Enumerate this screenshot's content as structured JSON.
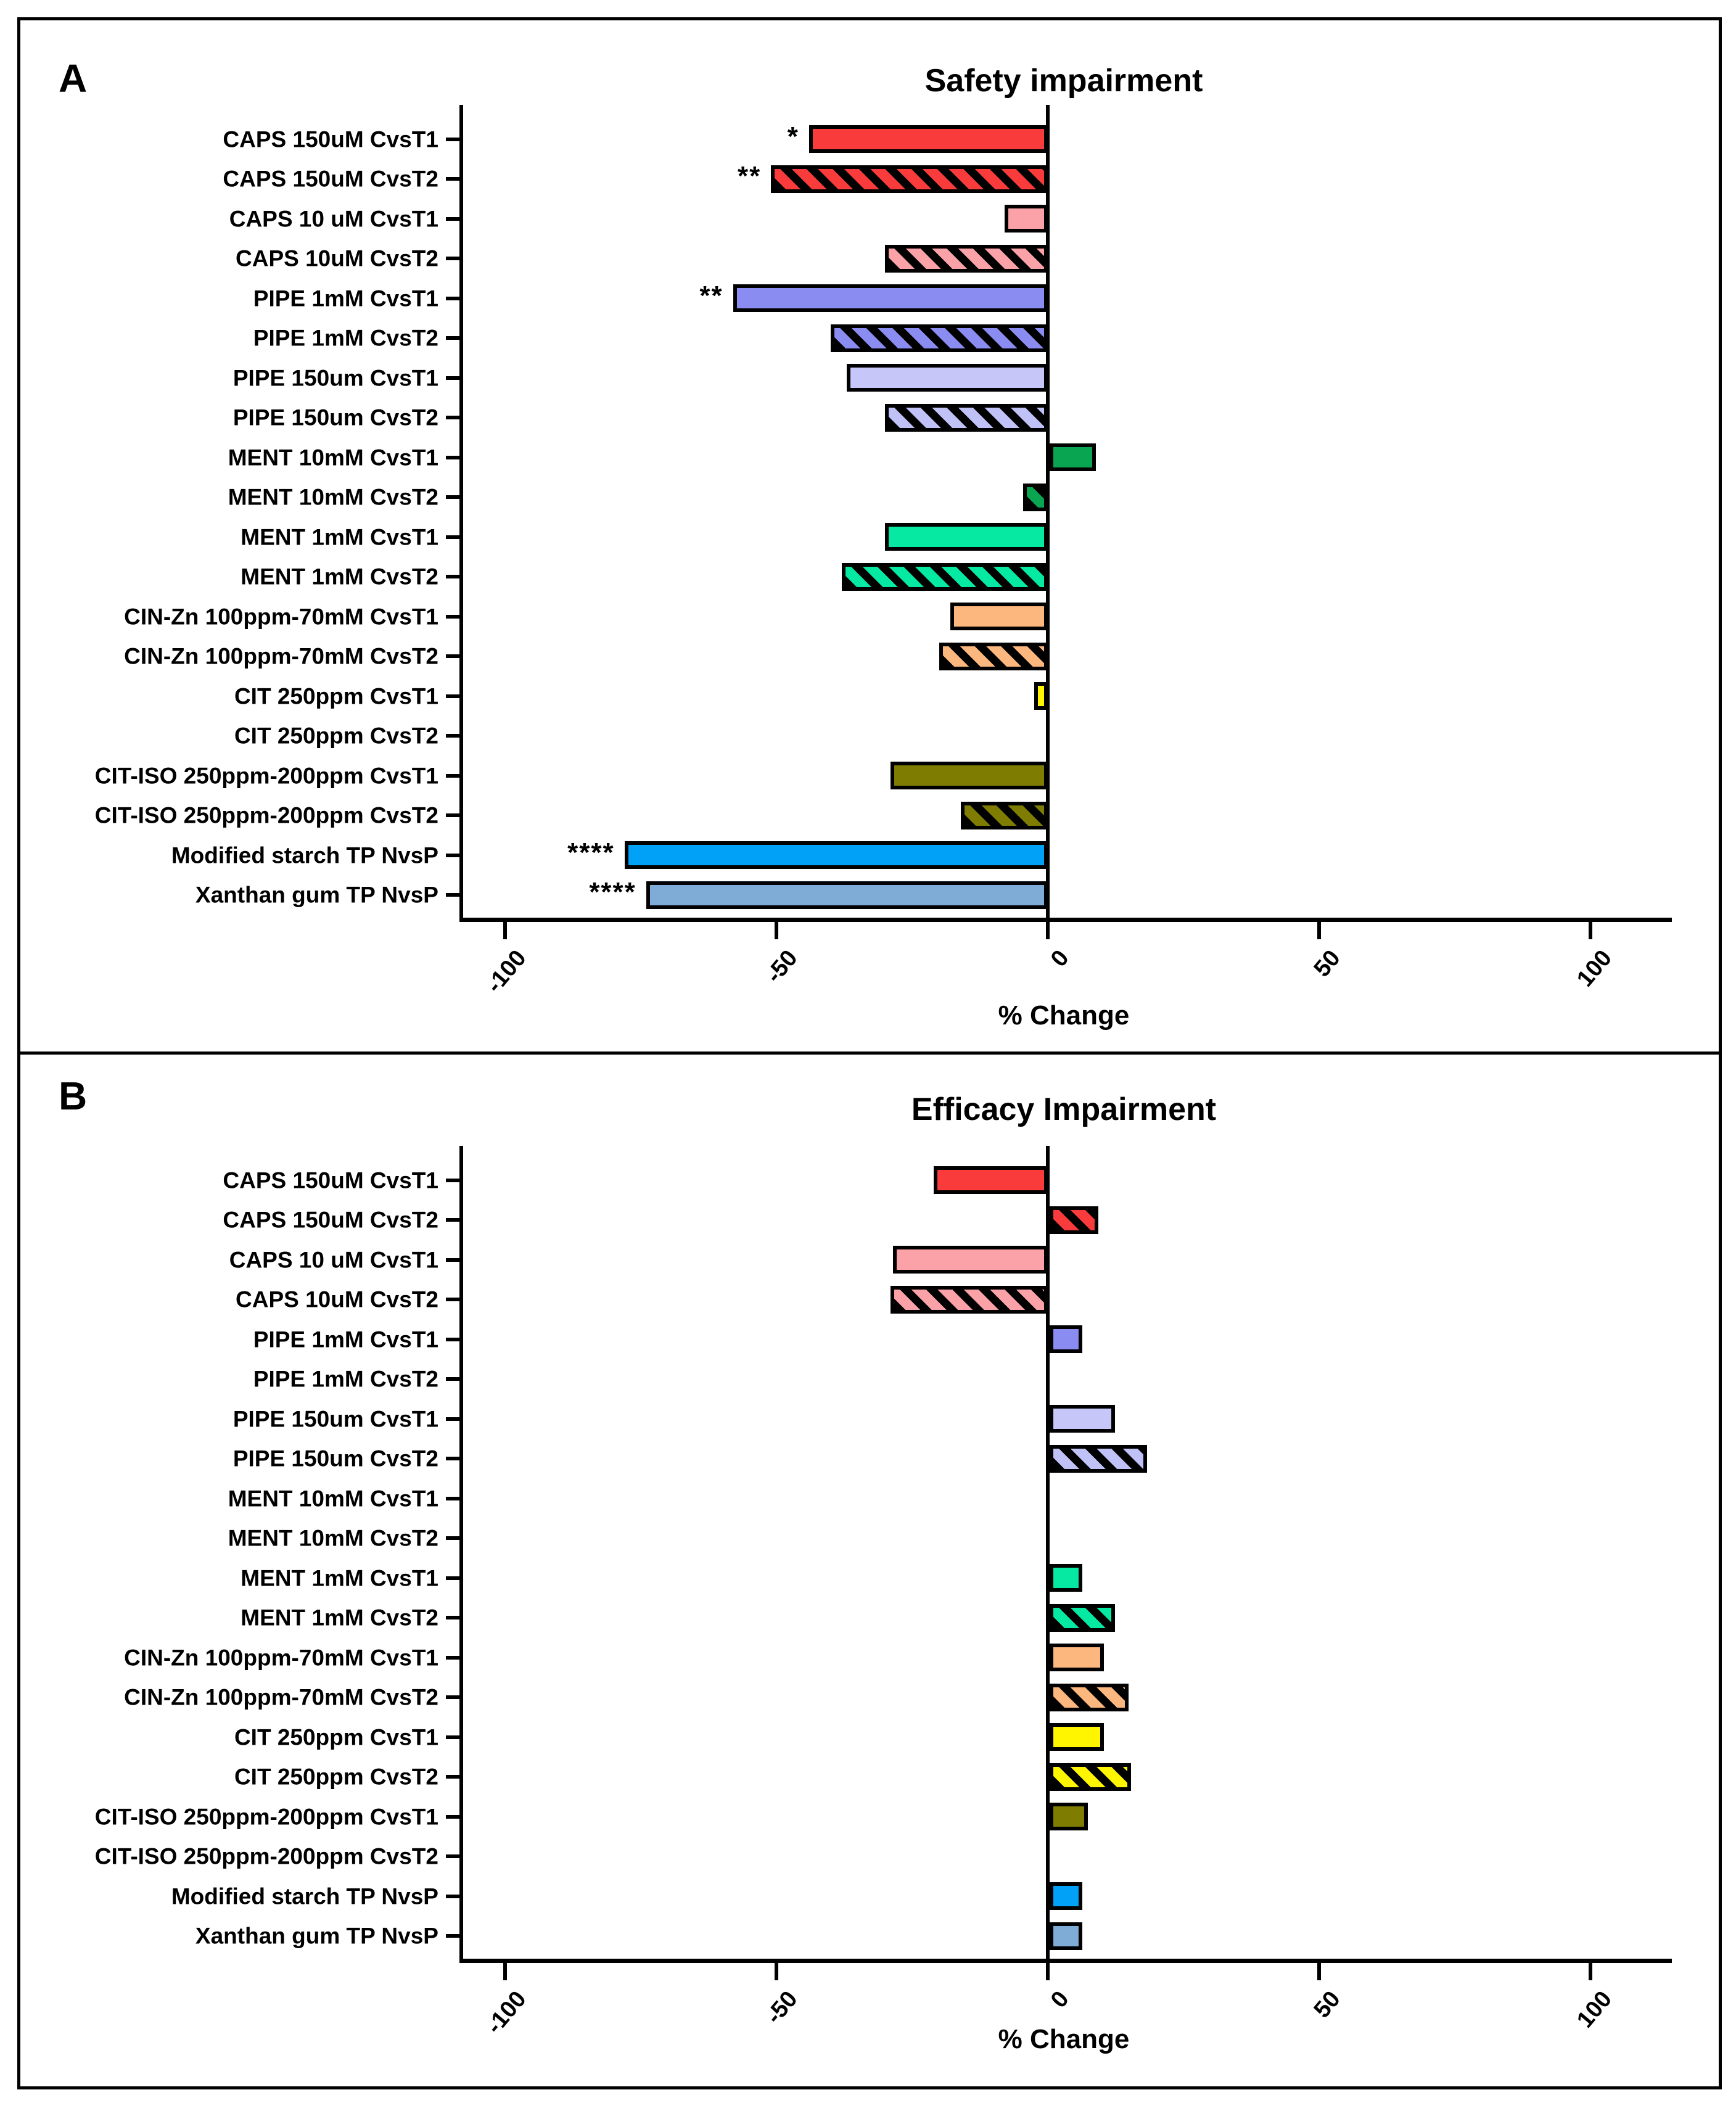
{
  "figure": {
    "panel_a_letter": "A",
    "panel_b_letter": "B"
  },
  "chart_data": {
    "type": "bar",
    "orientation": "horizontal",
    "grid": false,
    "legend": "none",
    "categories": [
      "CAPS 150uM CvsT1",
      "CAPS 150uM CvsT2",
      "CAPS 10 uM CvsT1",
      "CAPS 10uM CvsT2",
      "PIPE 1mM CvsT1",
      "PIPE 1mM CvsT2",
      "PIPE 150um CvsT1",
      "PIPE 150um CvsT2",
      "MENT 10mM CvsT1",
      "MENT 10mM CvsT2",
      "MENT 1mM CvsT1",
      "MENT 1mM CvsT2",
      "CIN-Zn 100ppm-70mM CvsT1",
      "CIN-Zn 100ppm-70mM CvsT2",
      "CIT 250ppm CvsT1",
      "CIT 250ppm CvsT2",
      "CIT-ISO 250ppm-200ppm CvsT1",
      "CIT-ISO 250ppm-200ppm CvsT2",
      "Modified starch TP NvsP",
      "Xanthan gum TP NvsP"
    ],
    "row_styles": [
      {
        "color": "#F93B3B",
        "hatch": false
      },
      {
        "color": "#F93B3B",
        "hatch": true
      },
      {
        "color": "#FBA2A8",
        "hatch": false
      },
      {
        "color": "#FBA2A8",
        "hatch": true
      },
      {
        "color": "#8B8CF1",
        "hatch": false
      },
      {
        "color": "#8B8CF1",
        "hatch": true
      },
      {
        "color": "#C6C7F8",
        "hatch": false
      },
      {
        "color": "#C0C1F6",
        "hatch": true
      },
      {
        "color": "#09A551",
        "hatch": false
      },
      {
        "color": "#09A551",
        "hatch": true
      },
      {
        "color": "#05E9A2",
        "hatch": false
      },
      {
        "color": "#05E9A2",
        "hatch": true
      },
      {
        "color": "#FBB77E",
        "hatch": false
      },
      {
        "color": "#FBB77E",
        "hatch": true
      },
      {
        "color": "#FFF500",
        "hatch": false
      },
      {
        "color": "#FFF500",
        "hatch": true
      },
      {
        "color": "#7E7D01",
        "hatch": false
      },
      {
        "color": "#7E7D01",
        "hatch": true
      },
      {
        "color": "#00A1F7",
        "hatch": false
      },
      {
        "color": "#7FACD6",
        "hatch": false
      }
    ],
    "hatch_color": "#000000",
    "axis_color": "#000000",
    "panels": [
      {
        "title": "Safety impairment",
        "xlabel": "% Change",
        "xticks": [
          -100,
          -50,
          0,
          50,
          100
        ],
        "xlim": [
          -108,
          112
        ],
        "values": [
          -44,
          -51,
          -8,
          -30,
          -58,
          -40,
          -37,
          -30,
          8.5,
          -4.5,
          -30,
          -38,
          -18,
          -20,
          -2.5,
          0,
          -29,
          -16,
          -78,
          -74
        ],
        "significance": [
          "*",
          "**",
          null,
          null,
          "**",
          null,
          null,
          null,
          null,
          null,
          null,
          null,
          null,
          null,
          null,
          null,
          null,
          null,
          "****",
          "****"
        ]
      },
      {
        "title": "Efficacy Impairment",
        "xlabel": "% Change",
        "xticks": [
          -100,
          -50,
          0,
          50,
          100
        ],
        "xlim": [
          -108,
          112
        ],
        "values": [
          -21,
          9,
          -28.5,
          -29,
          6,
          0,
          12,
          18,
          0,
          0,
          6,
          12,
          10,
          14.5,
          10,
          15,
          7,
          0,
          6,
          6
        ],
        "significance": [
          null,
          null,
          null,
          null,
          null,
          null,
          null,
          null,
          null,
          null,
          null,
          null,
          null,
          null,
          null,
          null,
          null,
          null,
          null,
          null
        ]
      }
    ]
  }
}
